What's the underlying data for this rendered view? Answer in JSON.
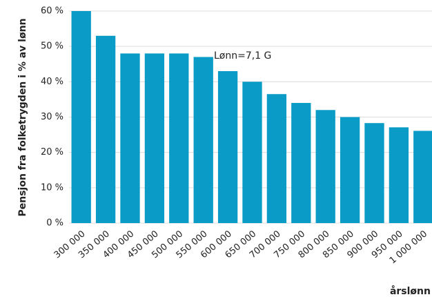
{
  "chart_data": {
    "type": "bar",
    "categories": [
      "300 000",
      "350 000",
      "400 000",
      "450 000",
      "500 000",
      "550 000",
      "600 000",
      "650 000",
      "700 000",
      "750 000",
      "800 000",
      "850 000",
      "900 000",
      "950 000",
      "1 000 000"
    ],
    "values": [
      60,
      53,
      48,
      48,
      48,
      47,
      43,
      40,
      36.5,
      34,
      32,
      30,
      28.3,
      27.1,
      26.1
    ],
    "color": "#0a9cc6",
    "ylim": [
      0,
      60
    ],
    "yticks": [
      {
        "value": 0,
        "label": "0 %"
      },
      {
        "value": 10,
        "label": "10 %"
      },
      {
        "value": 20,
        "label": "20 %"
      },
      {
        "value": 30,
        "label": "30 %"
      },
      {
        "value": 40,
        "label": "40 %"
      },
      {
        "value": 50,
        "label": "50 %"
      },
      {
        "value": 60,
        "label": "60 %"
      }
    ],
    "grid": true,
    "y_label": "Pensjon fra folketrygden i % av lønn",
    "x_label": "årslønn",
    "annotation": "Lønn=7,1 G"
  }
}
